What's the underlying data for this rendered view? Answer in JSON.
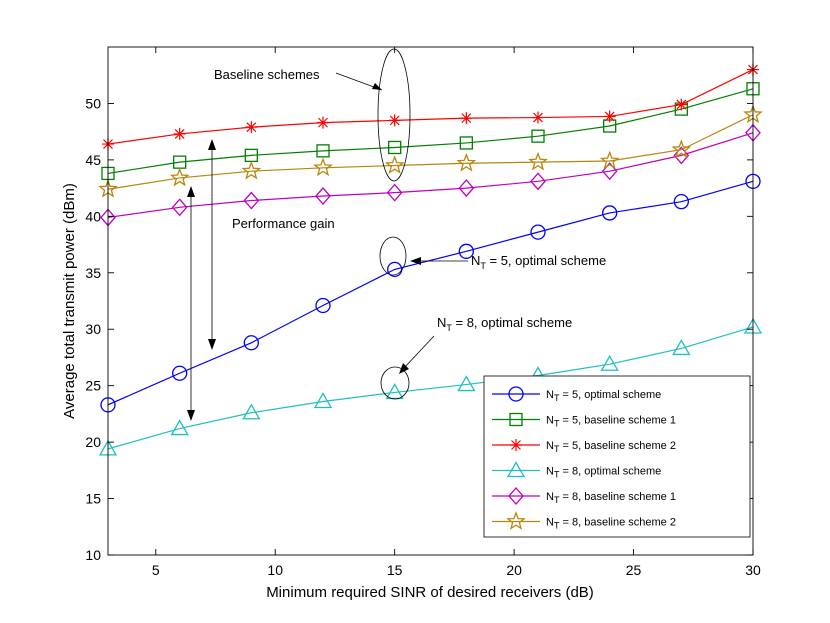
{
  "chart_data": {
    "type": "line",
    "title": "",
    "xlabel": "Minimum required SINR of desired receivers (dB)",
    "ylabel": "Average total transmit power (dBm)",
    "xlim": [
      3,
      30
    ],
    "ylim": [
      10,
      55
    ],
    "xticks": [
      5,
      10,
      15,
      20,
      25,
      30
    ],
    "yticks": [
      10,
      15,
      20,
      25,
      30,
      35,
      40,
      45,
      50
    ],
    "grid": false,
    "legend_position": "bottom-right",
    "x": [
      3,
      6,
      9,
      12,
      15,
      18,
      21,
      24,
      27,
      30
    ],
    "series": [
      {
        "name_prefix": "N",
        "name_sub": "T",
        "name_suffix": " = 5, optimal scheme",
        "color": "#0000ff",
        "marker": "circle",
        "values": [
          23.3,
          26.1,
          28.8,
          32.1,
          35.3,
          36.9,
          38.6,
          40.3,
          41.3,
          43.1
        ]
      },
      {
        "name_prefix": "N",
        "name_sub": "T",
        "name_suffix": " = 5, baseline scheme 1",
        "color": "#008000",
        "marker": "square",
        "values": [
          43.8,
          44.8,
          45.4,
          45.8,
          46.1,
          46.5,
          47.1,
          48.0,
          49.5,
          51.3
        ]
      },
      {
        "name_prefix": "N",
        "name_sub": "T",
        "name_suffix": " = 5, baseline scheme 2",
        "color": "#ff0000",
        "marker": "asterisk",
        "values": [
          46.4,
          47.3,
          47.9,
          48.3,
          48.5,
          48.7,
          48.75,
          48.85,
          49.9,
          53.0
        ]
      },
      {
        "name_prefix": "N",
        "name_sub": "T",
        "name_suffix": " = 8, optimal scheme",
        "color": "#1fbfbf",
        "marker": "triangle",
        "values": [
          19.4,
          21.2,
          22.6,
          23.6,
          24.4,
          25.1,
          25.9,
          26.9,
          28.3,
          30.2
        ]
      },
      {
        "name_prefix": "N",
        "name_sub": "T",
        "name_suffix": " = 8, baseline scheme 1",
        "color": "#bf00bf",
        "marker": "diamond",
        "values": [
          39.9,
          40.8,
          41.4,
          41.8,
          42.1,
          42.5,
          43.1,
          44.0,
          45.4,
          47.4
        ]
      },
      {
        "name_prefix": "N",
        "name_sub": "T",
        "name_suffix": " = 8, baseline scheme 2",
        "color": "#b8860b",
        "marker": "star",
        "values": [
          42.4,
          43.4,
          44.0,
          44.3,
          44.5,
          44.7,
          44.8,
          44.9,
          45.9,
          49.0
        ]
      }
    ],
    "annotations": {
      "baseline": "Baseline schemes",
      "gain": "Performance gain",
      "opt5_prefix": "N",
      "opt5_sub": "T",
      "opt5_suffix": " = 5, optimal scheme",
      "opt8_prefix": "N",
      "opt8_sub": "T",
      "opt8_suffix": " = 8, optimal scheme"
    }
  }
}
